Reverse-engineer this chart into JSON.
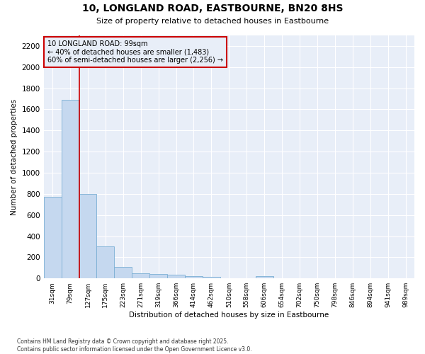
{
  "title": "10, LONGLAND ROAD, EASTBOURNE, BN20 8HS",
  "subtitle": "Size of property relative to detached houses in Eastbourne",
  "xlabel": "Distribution of detached houses by size in Eastbourne",
  "ylabel": "Number of detached properties",
  "categories": [
    "31sqm",
    "79sqm",
    "127sqm",
    "175sqm",
    "223sqm",
    "271sqm",
    "319sqm",
    "366sqm",
    "414sqm",
    "462sqm",
    "510sqm",
    "558sqm",
    "606sqm",
    "654sqm",
    "702sqm",
    "750sqm",
    "798sqm",
    "846sqm",
    "894sqm",
    "941sqm",
    "989sqm"
  ],
  "values": [
    770,
    1690,
    800,
    300,
    110,
    45,
    40,
    35,
    22,
    18,
    0,
    0,
    20,
    0,
    0,
    0,
    0,
    0,
    0,
    0,
    0
  ],
  "bar_color": "#c5d8ef",
  "bar_edge_color": "#7bafd4",
  "vline_x": 1.5,
  "vline_color": "#cc0000",
  "annotation_text": "10 LONGLAND ROAD: 99sqm\n← 40% of detached houses are smaller (1,483)\n60% of semi-detached houses are larger (2,256) →",
  "annotation_box_color": "#cc0000",
  "ylim": [
    0,
    2300
  ],
  "yticks": [
    0,
    200,
    400,
    600,
    800,
    1000,
    1200,
    1400,
    1600,
    1800,
    2000,
    2200
  ],
  "plot_bg_color": "#e8eef8",
  "fig_bg_color": "#ffffff",
  "grid_color": "#ffffff",
  "footnote": "Contains HM Land Registry data © Crown copyright and database right 2025.\nContains public sector information licensed under the Open Government Licence v3.0."
}
